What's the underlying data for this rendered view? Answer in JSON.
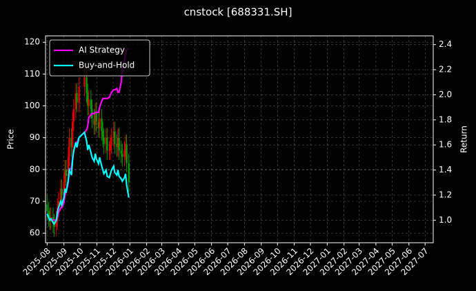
{
  "chart_data": {
    "type": "candlestick",
    "title": "cnstock [688331.SH]",
    "ylabel": "Price",
    "y2label": "Return",
    "x": [
      "2025-08-01",
      "2025-08-04",
      "2025-08-06",
      "2025-08-08",
      "2025-08-12",
      "2025-08-14",
      "2025-08-18",
      "2025-08-20",
      "2025-08-22",
      "2025-08-26",
      "2025-08-28",
      "2025-09-01",
      "2025-09-03",
      "2025-09-05",
      "2025-09-09",
      "2025-09-11",
      "2025-09-15",
      "2025-09-17",
      "2025-09-19",
      "2025-09-23",
      "2025-09-25",
      "2025-09-29",
      "2025-10-09",
      "2025-10-13",
      "2025-10-15",
      "2025-10-17",
      "2025-10-21",
      "2025-10-23",
      "2025-10-27",
      "2025-10-29",
      "2025-10-31",
      "2025-11-04",
      "2025-11-06",
      "2025-11-10",
      "2025-11-12",
      "2025-11-14",
      "2025-11-18",
      "2025-11-20",
      "2025-11-24",
      "2025-11-26",
      "2025-11-28",
      "2025-12-02",
      "2025-12-04",
      "2025-12-08",
      "2025-12-10",
      "2025-12-12",
      "2025-12-16",
      "2025-12-18",
      "2025-12-22",
      "2025-12-24",
      "2025-12-26",
      "2025-12-30"
    ],
    "open": [
      69,
      67,
      65,
      64,
      65,
      63,
      62,
      64,
      68,
      70,
      74,
      72,
      76,
      80,
      78,
      84,
      90,
      87,
      95,
      99,
      104,
      101,
      106,
      109,
      104,
      100,
      102,
      99,
      96,
      94,
      98,
      95,
      93,
      96,
      92,
      90,
      88,
      90,
      86,
      86,
      88,
      90,
      92,
      88,
      87,
      90,
      86,
      85,
      84,
      86,
      88,
      82
    ],
    "high": [
      72,
      70,
      68,
      68,
      68,
      66,
      67,
      71,
      73,
      77,
      77,
      79,
      83,
      83,
      87,
      93,
      93,
      98,
      102,
      107,
      107,
      109,
      112,
      112,
      107,
      105,
      105,
      102,
      99,
      101,
      101,
      98,
      99,
      99,
      95,
      93,
      93,
      93,
      89,
      91,
      93,
      95,
      95,
      91,
      93,
      93,
      89,
      88,
      89,
      91,
      91,
      85
    ],
    "low": [
      64,
      62,
      61,
      61,
      60,
      59,
      59,
      61,
      65,
      67,
      69,
      69,
      73,
      75,
      75,
      81,
      84,
      84,
      92,
      96,
      98,
      98,
      103,
      101,
      97,
      97,
      96,
      93,
      91,
      91,
      92,
      90,
      90,
      89,
      87,
      85,
      85,
      83,
      83,
      83,
      85,
      87,
      85,
      84,
      84,
      83,
      82,
      81,
      81,
      83,
      79,
      73
    ],
    "close": [
      67,
      65,
      64,
      65,
      63,
      62,
      64,
      68,
      70,
      74,
      72,
      76,
      80,
      78,
      84,
      90,
      87,
      95,
      99,
      104,
      101,
      106,
      109,
      104,
      100,
      102,
      99,
      96,
      94,
      98,
      95,
      93,
      96,
      92,
      90,
      88,
      90,
      86,
      86,
      88,
      90,
      92,
      88,
      87,
      90,
      86,
      85,
      84,
      86,
      88,
      82,
      76
    ],
    "up_color": "#dd0000",
    "down_color": "#009900",
    "series": [
      {
        "name": "AI Strategy",
        "color": "#ff00ff",
        "axis": "y2",
        "values": [
          1.05,
          1.02,
          1.0,
          1.01,
          1.0,
          1.0,
          1.0,
          1.03,
          1.06,
          1.1,
          1.1,
          1.14,
          1.2,
          1.22,
          1.3,
          1.4,
          1.42,
          1.5,
          1.55,
          1.62,
          1.62,
          1.66,
          1.7,
          1.72,
          1.75,
          1.82,
          1.84,
          1.85,
          1.85,
          1.86,
          1.86,
          1.86,
          1.9,
          1.95,
          1.97,
          1.97,
          1.97,
          1.97,
          1.98,
          2.0,
          2.02,
          2.04,
          2.04,
          2.05,
          2.02,
          2.02,
          2.1,
          2.2,
          2.28,
          2.33,
          2.36,
          2.37
        ]
      },
      {
        "name": "Buy-and-Hold",
        "color": "#00ffff",
        "axis": "y2",
        "values": [
          1.05,
          1.02,
          1.0,
          1.01,
          0.98,
          0.97,
          1.0,
          1.06,
          1.1,
          1.15,
          1.12,
          1.18,
          1.25,
          1.22,
          1.32,
          1.4,
          1.36,
          1.48,
          1.55,
          1.62,
          1.58,
          1.66,
          1.7,
          1.63,
          1.56,
          1.6,
          1.54,
          1.5,
          1.47,
          1.53,
          1.49,
          1.45,
          1.5,
          1.43,
          1.4,
          1.37,
          1.4,
          1.35,
          1.34,
          1.37,
          1.4,
          1.43,
          1.38,
          1.36,
          1.4,
          1.35,
          1.33,
          1.31,
          1.34,
          1.37,
          1.28,
          1.18
        ]
      }
    ],
    "xlim": [
      "2025-07-29",
      "2027-07-16"
    ],
    "xticks": [
      "2025-08",
      "2025-09",
      "2025-10",
      "2025-11",
      "2025-12",
      "2026-01",
      "2026-02",
      "2026-03",
      "2026-04",
      "2026-05",
      "2026-06",
      "2026-07",
      "2026-08",
      "2026-09",
      "2026-10",
      "2026-11",
      "2026-12",
      "2027-01",
      "2027-02",
      "2027-03",
      "2027-04",
      "2027-05",
      "2027-06",
      "2027-07"
    ],
    "ylim": [
      57,
      122
    ],
    "yticks": [
      60,
      70,
      80,
      90,
      100,
      110,
      120
    ],
    "y2lim": [
      0.82,
      2.47
    ],
    "y2ticks": [
      {
        "value": 1,
        "label": "1.0"
      },
      1.2,
      1.4,
      1.6,
      1.8,
      {
        "value": 2,
        "label": "2.0"
      },
      2.2,
      2.4
    ],
    "grid": true,
    "legend": "upper left"
  }
}
